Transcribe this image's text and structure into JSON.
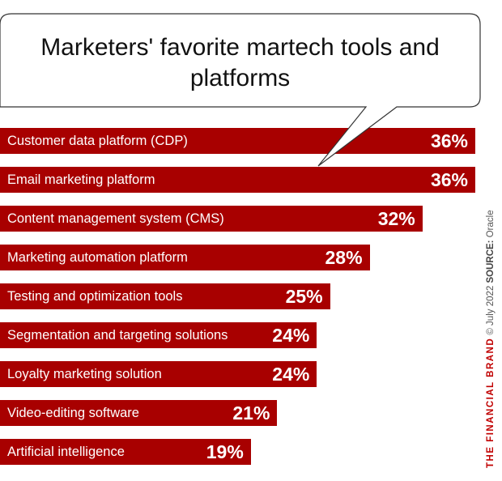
{
  "chart_data": {
    "type": "bar",
    "orientation": "horizontal",
    "title": "Marketers' favorite martech tools and platforms",
    "categories": [
      "Customer data platform (CDP)",
      "Email marketing platform",
      "Content management system (CMS)",
      "Marketing automation platform",
      "Testing and optimization tools",
      "Segmentation and targeting solutions",
      "Loyalty marketing solution",
      "Video-editing software",
      "Artificial intelligence"
    ],
    "values": [
      36,
      36,
      32,
      28,
      25,
      24,
      24,
      21,
      19
    ],
    "value_labels": [
      "36%",
      "36%",
      "32%",
      "28%",
      "25%",
      "24%",
      "24%",
      "21%",
      "19%"
    ],
    "bar_color": "#a80000",
    "xlim": [
      0,
      36
    ]
  },
  "credit": {
    "brand": "THE FINANCIAL BRAND",
    "copyright": "© July 2022",
    "source_label": "SOURCE:",
    "source": "Oracle"
  }
}
